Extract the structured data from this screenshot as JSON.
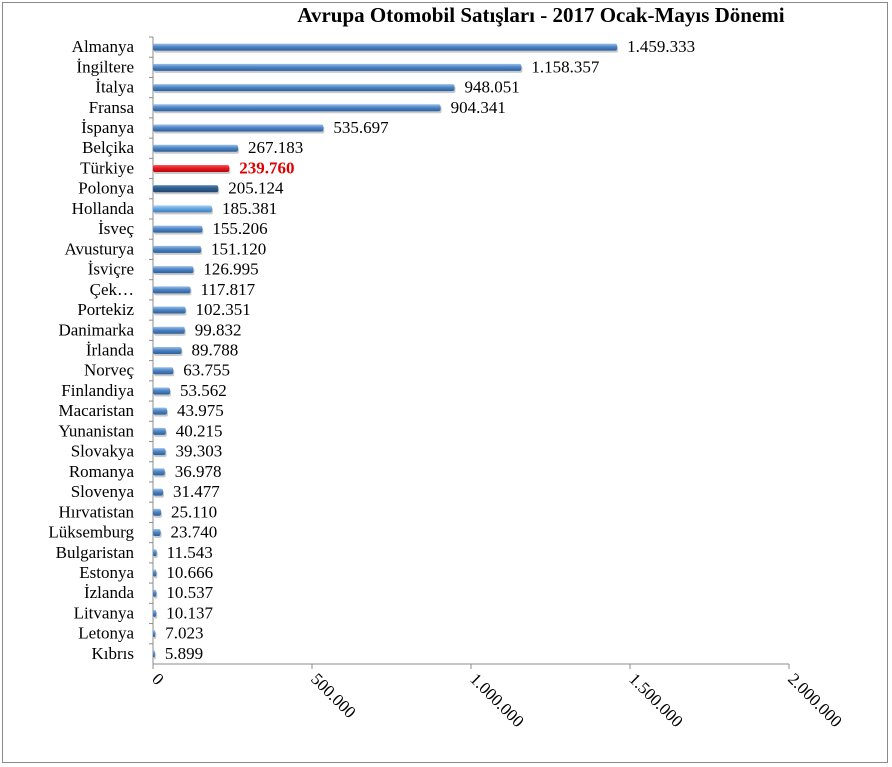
{
  "chart_data": {
    "type": "bar",
    "orientation": "horizontal",
    "title": "Avrupa Otomobil Satışları - 2017 Ocak-Mayıs Dönemi",
    "categories": [
      "Almanya",
      "İngiltere",
      "İtalya",
      "Fransa",
      "İspanya",
      "Belçika",
      "Türkiye",
      "Polonya",
      "Hollanda",
      "İsveç",
      "Avusturya",
      "İsviçre",
      "Çek…",
      "Portekiz",
      "Danimarka",
      "İrlanda",
      "Norveç",
      "Finlandiya",
      "Macaristan",
      "Yunanistan",
      "Slovakya",
      "Romanya",
      "Slovenya",
      "Hırvatistan",
      "Lüksemburg",
      "Bulgaristan",
      "Estonya",
      "İzlanda",
      "Litvanya",
      "Letonya",
      "Kıbrıs"
    ],
    "values": [
      1459333,
      1158357,
      948051,
      904341,
      535697,
      267183,
      239760,
      205124,
      185381,
      155206,
      151120,
      126995,
      117817,
      102351,
      99832,
      89788,
      63755,
      53562,
      43975,
      40215,
      39303,
      36978,
      31477,
      25110,
      23740,
      11543,
      10666,
      10537,
      10137,
      7023,
      5899
    ],
    "value_labels": [
      "1.459.333",
      "1.158.357",
      "948.051",
      "904.341",
      "535.697",
      "267.183",
      "239.760",
      "205.124",
      "185.381",
      "155.206",
      "151.120",
      "126.995",
      "117.817",
      "102.351",
      "99.832",
      "89.788",
      "63.755",
      "53.562",
      "43.975",
      "40.215",
      "39.303",
      "36.978",
      "31.477",
      "25.110",
      "23.740",
      "11.543",
      "10.666",
      "10.537",
      "10.137",
      "7.023",
      "5.899"
    ],
    "highlight_category": "Türkiye",
    "xlim": [
      0,
      2000000
    ],
    "x_ticks": [
      0,
      500000,
      1000000,
      1500000,
      2000000
    ],
    "x_tick_labels": [
      "0",
      "500.000",
      "1.000.000",
      "1.500.000",
      "2.000.000"
    ],
    "grid": false,
    "legend": "none",
    "colors": {
      "bar": "#4f86c6",
      "bar_dark": "#2d5f9a",
      "bar_light": "#9cc0ea",
      "polonya_bar": "#2e5c8a",
      "hollanda_bar": "#5fa2dd",
      "highlight_bar": "#e8191f",
      "highlight_text": "#e00000",
      "axis": "#8c8c8c"
    }
  }
}
